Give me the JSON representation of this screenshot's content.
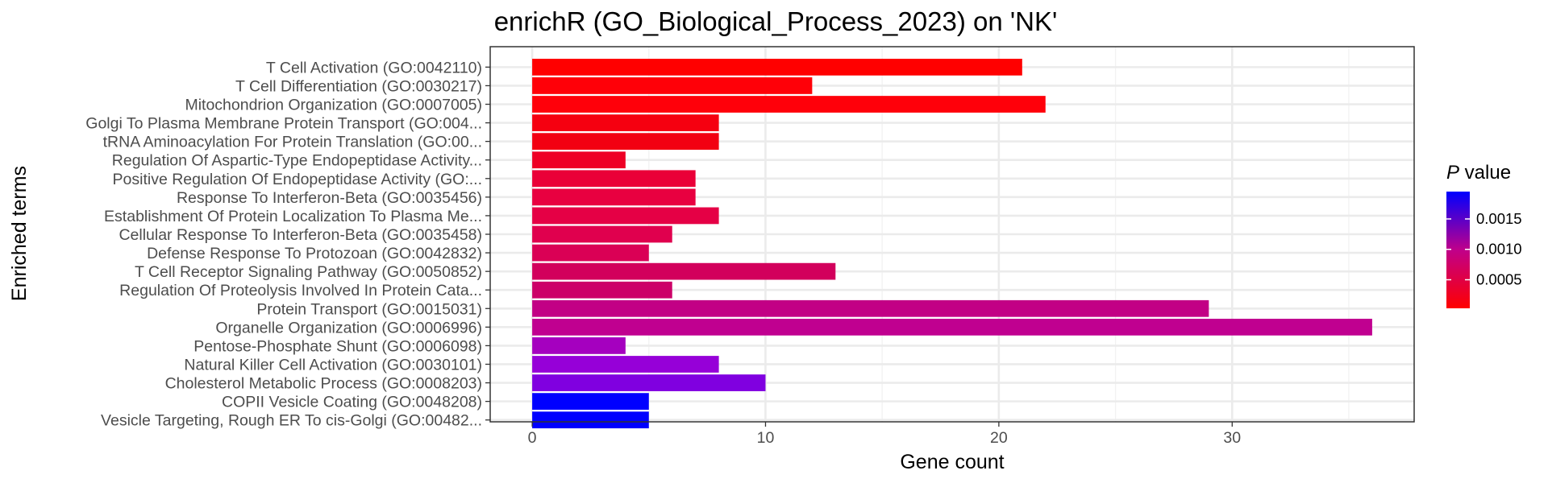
{
  "chart_data": {
    "type": "bar",
    "orientation": "horizontal",
    "title": "enrichR (GO_Biological_Process_2023) on 'NK'",
    "xlabel": "Gene count",
    "ylabel": "Enriched terms",
    "xlim": [
      -1.8,
      37.8
    ],
    "xticks": [
      0,
      10,
      20,
      30
    ],
    "grid": true,
    "legend": {
      "title_italic": "P",
      "title_rest": " value",
      "position": "right",
      "ticks": [
        "0.0015",
        "0.0010",
        "0.0005"
      ],
      "tick_values": [
        0.0015,
        0.001,
        0.0005
      ],
      "range": [
        3e-05,
        0.00195
      ],
      "color_low": "#ff0000",
      "color_high": "#0000ff"
    },
    "categories": [
      "T Cell Activation (GO:0042110)",
      "T Cell Differentiation (GO:0030217)",
      "Mitochondrion Organization (GO:0007005)",
      "Golgi To Plasma Membrane Protein Transport (GO:004...",
      "tRNA Aminoacylation For Protein Translation (GO:00...",
      "Regulation Of Aspartic-Type Endopeptidase Activity...",
      "Positive Regulation Of Endopeptidase Activity (GO:...",
      "Response To Interferon-Beta (GO:0035456)",
      "Establishment Of Protein Localization To Plasma Me...",
      "Cellular Response To Interferon-Beta (GO:0035458)",
      "Defense Response To Protozoan (GO:0042832)",
      "T Cell Receptor Signaling Pathway (GO:0050852)",
      "Regulation Of Proteolysis Involved In Protein Cata...",
      "Protein Transport (GO:0015031)",
      "Organelle Organization (GO:0006996)",
      "Pentose-Phosphate Shunt (GO:0006098)",
      "Natural Killer Cell Activation (GO:0030101)",
      "Cholesterol Metabolic Process (GO:0008203)",
      "COPII Vesicle Coating (GO:0048208)",
      "Vesicle Targeting, Rough ER To cis-Golgi (GO:00482..."
    ],
    "values": [
      21,
      12,
      22,
      8,
      8,
      4,
      7,
      7,
      8,
      6,
      5,
      13,
      6,
      29,
      36,
      4,
      8,
      10,
      5,
      5
    ],
    "colors": [
      "#ff0000",
      "#ff0008",
      "#ff000a",
      "#f50010",
      "#f20012",
      "#ee0025",
      "#ea0038",
      "#e80040",
      "#e50045",
      "#e0004e",
      "#da0055",
      "#d2005c",
      "#cc0068",
      "#c20085",
      "#c00090",
      "#a500bf",
      "#9600d8",
      "#8000e0",
      "#0000ff",
      "#0000ff"
    ]
  }
}
